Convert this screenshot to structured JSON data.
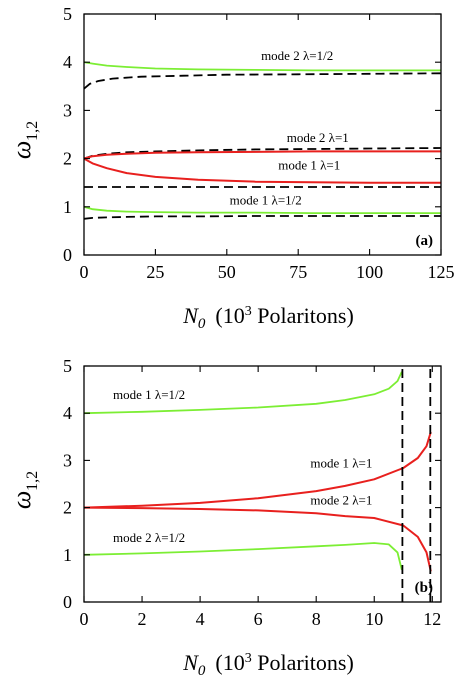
{
  "colors": {
    "green": "#7cee34",
    "red": "#e8201e",
    "black_dashed": "#000000"
  },
  "chart_data": [
    {
      "type": "line",
      "panel_label": "(a)",
      "xlabel_main": "N",
      "xlabel_sub": "0",
      "xlabel_units_prefix": "(10",
      "xlabel_units_sup": "3",
      "xlabel_units_suffix": " Polaritons)",
      "ylabel_main": "ω",
      "ylabel_sub": "1,2",
      "xlim": [
        0,
        125
      ],
      "ylim": [
        0,
        5
      ],
      "xticks": [
        0,
        25,
        50,
        75,
        100,
        125
      ],
      "yticks": [
        0,
        1,
        2,
        3,
        4,
        5
      ],
      "xtick_labels": [
        "0",
        "25",
        "50",
        "75",
        "100",
        "125"
      ],
      "ytick_labels": [
        "0",
        "1",
        "2",
        "3",
        "4",
        "5"
      ],
      "annotations": [
        {
          "text": "mode 2   λ=1/2",
          "x": 62,
          "y": 4.05
        },
        {
          "text": "mode 2   λ=1",
          "x": 71,
          "y": 2.34
        },
        {
          "text": "mode 1   λ=1",
          "x": 68,
          "y": 1.77
        },
        {
          "text": "mode 1   λ=1/2",
          "x": 51,
          "y": 1.05
        }
      ],
      "series": [
        {
          "color": "green",
          "dash": false,
          "x": [
            0,
            3,
            8,
            15,
            25,
            40,
            60,
            80,
            100,
            125
          ],
          "y": [
            4.0,
            3.97,
            3.93,
            3.9,
            3.87,
            3.85,
            3.84,
            3.83,
            3.83,
            3.83
          ]
        },
        {
          "color": "black_dashed",
          "dash": true,
          "x": [
            0,
            2,
            5,
            10,
            20,
            35,
            50,
            75,
            100,
            125
          ],
          "y": [
            3.45,
            3.55,
            3.61,
            3.66,
            3.7,
            3.72,
            3.74,
            3.75,
            3.76,
            3.77
          ]
        },
        {
          "color": "black_dashed",
          "dash": true,
          "x": [
            0,
            3,
            8,
            15,
            25,
            40,
            60,
            80,
            100,
            125
          ],
          "y": [
            2.0,
            2.06,
            2.1,
            2.13,
            2.15,
            2.17,
            2.19,
            2.2,
            2.21,
            2.22
          ]
        },
        {
          "color": "red",
          "dash": false,
          "x": [
            0,
            3,
            8,
            15,
            25,
            40,
            60,
            80,
            100,
            125
          ],
          "y": [
            2.0,
            2.05,
            2.08,
            2.1,
            2.12,
            2.13,
            2.14,
            2.15,
            2.15,
            2.15
          ]
        },
        {
          "color": "red",
          "dash": false,
          "x": [
            0,
            3,
            8,
            15,
            25,
            40,
            60,
            80,
            100,
            125
          ],
          "y": [
            2.0,
            1.9,
            1.8,
            1.7,
            1.62,
            1.56,
            1.52,
            1.51,
            1.5,
            1.5
          ]
        },
        {
          "color": "black_dashed",
          "dash": true,
          "x": [
            0,
            125
          ],
          "y": [
            1.41,
            1.41
          ]
        },
        {
          "color": "green",
          "dash": false,
          "x": [
            0,
            3,
            8,
            15,
            25,
            40,
            60,
            80,
            100,
            125
          ],
          "y": [
            1.0,
            0.95,
            0.92,
            0.9,
            0.89,
            0.88,
            0.88,
            0.87,
            0.87,
            0.87
          ]
        },
        {
          "color": "black_dashed",
          "dash": true,
          "x": [
            0,
            3,
            8,
            15,
            25,
            40,
            60,
            80,
            100,
            125
          ],
          "y": [
            0.75,
            0.77,
            0.78,
            0.79,
            0.8,
            0.8,
            0.81,
            0.81,
            0.81,
            0.81
          ]
        }
      ]
    },
    {
      "type": "line",
      "panel_label": "(b)",
      "xlabel_main": "N",
      "xlabel_sub": "0",
      "xlabel_units_prefix": "(10",
      "xlabel_units_sup": "3",
      "xlabel_units_suffix": " Polaritons)",
      "ylabel_main": "ω",
      "ylabel_sub": "1,2",
      "xlim": [
        0,
        12.3
      ],
      "ylim": [
        0,
        5
      ],
      "xticks": [
        0,
        2,
        4,
        6,
        8,
        10,
        12
      ],
      "yticks": [
        0,
        1,
        2,
        3,
        4,
        5
      ],
      "xtick_labels": [
        "0",
        "2",
        "4",
        "6",
        "8",
        "10",
        "12"
      ],
      "ytick_labels": [
        "0",
        "1",
        "2",
        "3",
        "4",
        "5"
      ],
      "annotations": [
        {
          "text": "mode 1   λ=1/2",
          "x": 1.0,
          "y": 4.3
        },
        {
          "text": "mode 1   λ=1",
          "x": 7.8,
          "y": 2.85
        },
        {
          "text": "mode 2   λ=1",
          "x": 7.8,
          "y": 2.07
        },
        {
          "text": "mode 2   λ=1/2",
          "x": 1.0,
          "y": 1.27
        }
      ],
      "series": [
        {
          "color": "green",
          "dash": false,
          "x": [
            0,
            2,
            4,
            6,
            8,
            9,
            10,
            10.5,
            10.8,
            10.95
          ],
          "y": [
            4.0,
            4.03,
            4.07,
            4.12,
            4.2,
            4.28,
            4.4,
            4.52,
            4.68,
            4.88
          ]
        },
        {
          "color": "green",
          "dash": false,
          "x": [
            0,
            2,
            4,
            6,
            8,
            9,
            10,
            10.5,
            10.8,
            10.95
          ],
          "y": [
            1.0,
            1.03,
            1.07,
            1.12,
            1.18,
            1.21,
            1.25,
            1.22,
            1.05,
            0.68
          ]
        },
        {
          "color": "red",
          "dash": false,
          "x": [
            0,
            2,
            4,
            6,
            8,
            9,
            10,
            11,
            11.5,
            11.8,
            11.95
          ],
          "y": [
            2.0,
            2.04,
            2.1,
            2.2,
            2.35,
            2.46,
            2.6,
            2.84,
            3.05,
            3.3,
            3.6
          ]
        },
        {
          "color": "red",
          "dash": false,
          "x": [
            0,
            2,
            4,
            6,
            8,
            9,
            10,
            11,
            11.5,
            11.8,
            11.95
          ],
          "y": [
            2.0,
            1.99,
            1.97,
            1.94,
            1.88,
            1.82,
            1.78,
            1.62,
            1.38,
            1.05,
            0.65
          ]
        },
        {
          "color": "black_dashed",
          "dash": true,
          "x": [
            10.97,
            10.97
          ],
          "y": [
            0,
            5
          ]
        },
        {
          "color": "black_dashed",
          "dash": true,
          "x": [
            11.93,
            11.93
          ],
          "y": [
            0,
            5
          ]
        }
      ]
    }
  ]
}
